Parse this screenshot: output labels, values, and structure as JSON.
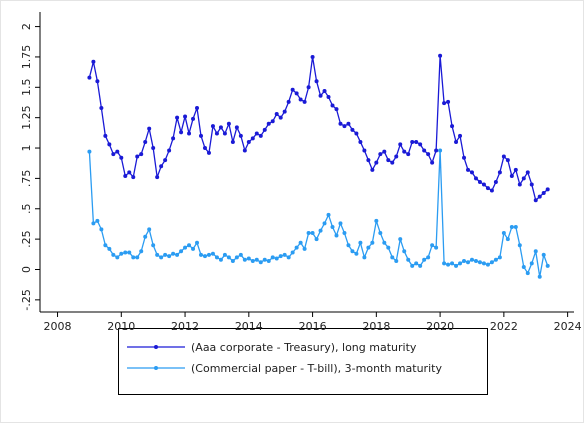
{
  "chart_data": {
    "type": "line",
    "x": [
      2009.0,
      2009.125,
      2009.25,
      2009.375,
      2009.5,
      2009.625,
      2009.75,
      2009.875,
      2010.0,
      2010.125,
      2010.25,
      2010.375,
      2010.5,
      2010.625,
      2010.75,
      2010.875,
      2011.0,
      2011.125,
      2011.25,
      2011.375,
      2011.5,
      2011.625,
      2011.75,
      2011.875,
      2012.0,
      2012.125,
      2012.25,
      2012.375,
      2012.5,
      2012.625,
      2012.75,
      2012.875,
      2013.0,
      2013.125,
      2013.25,
      2013.375,
      2013.5,
      2013.625,
      2013.75,
      2013.875,
      2014.0,
      2014.125,
      2014.25,
      2014.375,
      2014.5,
      2014.625,
      2014.75,
      2014.875,
      2015.0,
      2015.125,
      2015.25,
      2015.375,
      2015.5,
      2015.625,
      2015.75,
      2015.875,
      2016.0,
      2016.125,
      2016.25,
      2016.375,
      2016.5,
      2016.625,
      2016.75,
      2016.875,
      2017.0,
      2017.125,
      2017.25,
      2017.375,
      2017.5,
      2017.625,
      2017.75,
      2017.875,
      2018.0,
      2018.125,
      2018.25,
      2018.375,
      2018.5,
      2018.625,
      2018.75,
      2018.875,
      2019.0,
      2019.125,
      2019.25,
      2019.375,
      2019.5,
      2019.625,
      2019.75,
      2019.875,
      2020.0,
      2020.125,
      2020.25,
      2020.375,
      2020.5,
      2020.625,
      2020.75,
      2020.875,
      2021.0,
      2021.125,
      2021.25,
      2021.375,
      2021.5,
      2021.625,
      2021.75,
      2021.875,
      2022.0,
      2022.125,
      2022.25,
      2022.375,
      2022.5,
      2022.625,
      2022.75,
      2022.875,
      2023.0,
      2023.125,
      2023.25,
      2023.375
    ],
    "series": [
      {
        "name": "(Aaa corporate - Treasury), long maturity",
        "color": "#1a1ad6",
        "values": [
          1.58,
          1.71,
          1.55,
          1.33,
          1.1,
          1.03,
          0.95,
          0.97,
          0.92,
          0.77,
          0.8,
          0.76,
          0.93,
          0.95,
          1.05,
          1.16,
          1.0,
          0.76,
          0.85,
          0.9,
          0.98,
          1.08,
          1.25,
          1.13,
          1.26,
          1.12,
          1.24,
          1.33,
          1.1,
          1.0,
          0.96,
          1.18,
          1.12,
          1.17,
          1.12,
          1.2,
          1.05,
          1.17,
          1.1,
          0.98,
          1.05,
          1.08,
          1.12,
          1.1,
          1.15,
          1.2,
          1.22,
          1.28,
          1.25,
          1.3,
          1.38,
          1.48,
          1.45,
          1.4,
          1.38,
          1.5,
          1.75,
          1.55,
          1.43,
          1.47,
          1.42,
          1.35,
          1.32,
          1.2,
          1.18,
          1.2,
          1.15,
          1.12,
          1.05,
          0.98,
          0.9,
          0.82,
          0.88,
          0.95,
          0.97,
          0.9,
          0.88,
          0.93,
          1.03,
          0.97,
          0.95,
          1.05,
          1.05,
          1.03,
          0.98,
          0.95,
          0.88,
          0.98,
          1.76,
          1.37,
          1.38,
          1.18,
          1.05,
          1.1,
          0.92,
          0.82,
          0.8,
          0.75,
          0.72,
          0.7,
          0.67,
          0.65,
          0.72,
          0.8,
          0.93,
          0.9,
          0.77,
          0.82,
          0.7,
          0.75,
          0.8,
          0.7,
          0.57,
          0.6,
          0.63,
          0.66
        ]
      },
      {
        "name": "(Commercial paper - T-bill), 3-month maturity",
        "color": "#2b9cf2",
        "values": [
          0.97,
          0.38,
          0.4,
          0.33,
          0.2,
          0.17,
          0.12,
          0.1,
          0.13,
          0.14,
          0.14,
          0.1,
          0.1,
          0.15,
          0.27,
          0.33,
          0.2,
          0.12,
          0.1,
          0.12,
          0.11,
          0.13,
          0.12,
          0.15,
          0.18,
          0.2,
          0.17,
          0.22,
          0.12,
          0.11,
          0.12,
          0.13,
          0.1,
          0.08,
          0.12,
          0.1,
          0.07,
          0.1,
          0.12,
          0.08,
          0.09,
          0.07,
          0.08,
          0.06,
          0.08,
          0.07,
          0.1,
          0.09,
          0.11,
          0.12,
          0.1,
          0.14,
          0.18,
          0.22,
          0.17,
          0.3,
          0.3,
          0.25,
          0.32,
          0.38,
          0.45,
          0.35,
          0.28,
          0.38,
          0.3,
          0.2,
          0.15,
          0.13,
          0.22,
          0.1,
          0.18,
          0.22,
          0.4,
          0.3,
          0.22,
          0.18,
          0.1,
          0.07,
          0.25,
          0.15,
          0.08,
          0.03,
          0.05,
          0.03,
          0.08,
          0.1,
          0.2,
          0.18,
          0.98,
          0.05,
          0.04,
          0.05,
          0.03,
          0.05,
          0.07,
          0.06,
          0.08,
          0.07,
          0.06,
          0.05,
          0.04,
          0.06,
          0.08,
          0.1,
          0.3,
          0.25,
          0.35,
          0.35,
          0.2,
          0.02,
          -0.03,
          0.05,
          0.15,
          -0.06,
          0.12,
          0.03
        ]
      }
    ],
    "xlim": [
      2007.45,
      2024.2
    ],
    "xticks": [
      2008,
      2010,
      2012,
      2014,
      2016,
      2018,
      2020,
      2022,
      2024
    ],
    "ylim": [
      -0.35,
      2.12
    ],
    "yticks": [
      {
        "value": -0.25,
        "label": "-.25"
      },
      0,
      {
        "value": 0.25,
        "label": ".25"
      },
      {
        "value": 0.5,
        "label": ".5"
      },
      {
        "value": 0.75,
        "label": ".75"
      },
      1,
      1.25,
      1.5,
      1.75,
      2
    ],
    "legend": "bottom"
  }
}
